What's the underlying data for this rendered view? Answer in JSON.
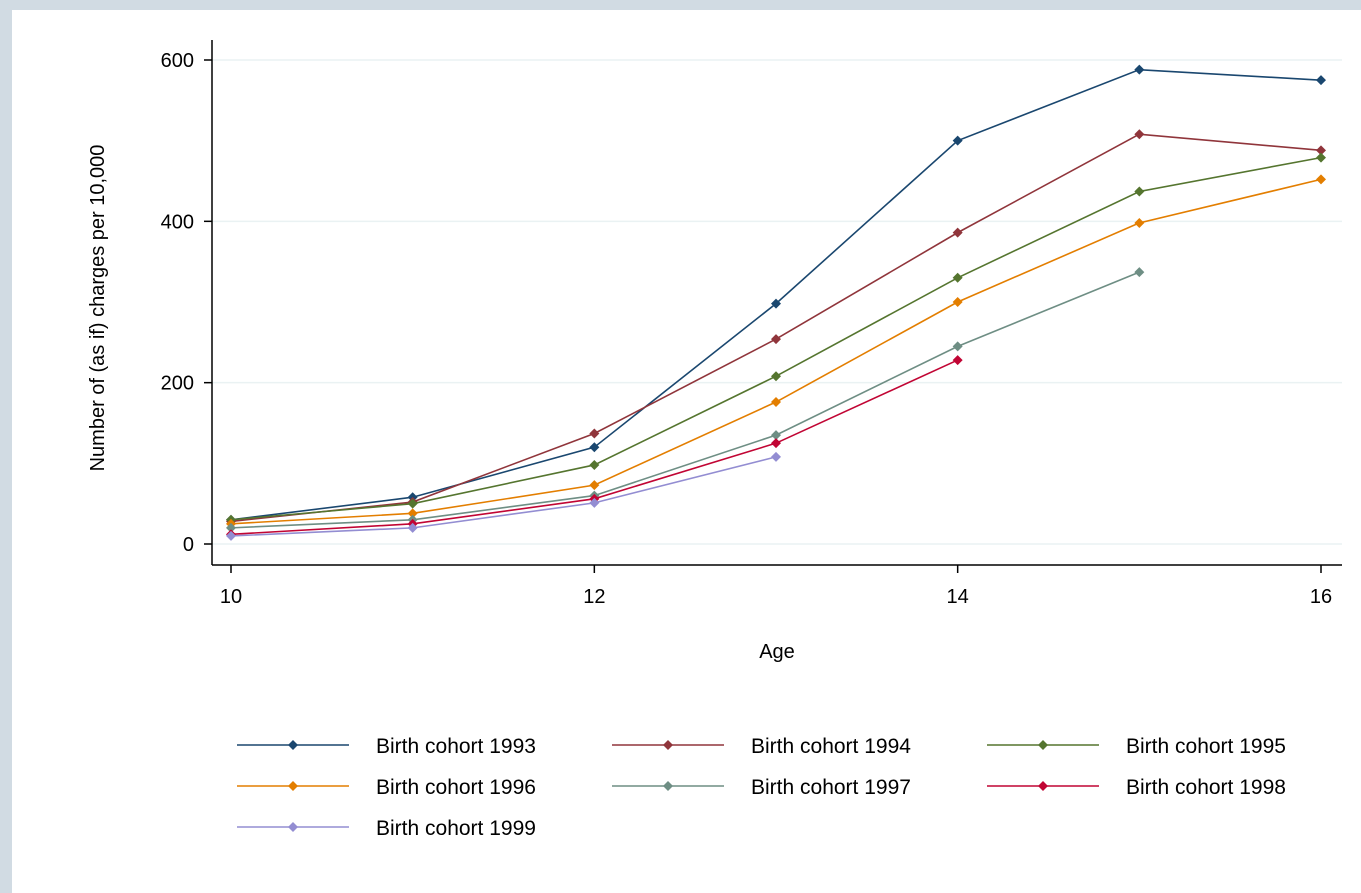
{
  "chart_data": {
    "type": "line",
    "title": "",
    "xlabel": "Age",
    "ylabel": "Number of (as if) charges per 10,000",
    "xlim": [
      10,
      16
    ],
    "ylim": [
      0,
      600
    ],
    "x_ticks": [
      "10",
      "12",
      "14",
      "16"
    ],
    "y_ticks": [
      "0",
      "200",
      "400",
      "600"
    ],
    "grid": "horizontal",
    "legend_position": "bottom",
    "series": [
      {
        "name": "Birth cohort 1993",
        "color": "#1a476f",
        "x": [
          10,
          11,
          12,
          13,
          14,
          15,
          16
        ],
        "values": [
          30,
          58,
          120,
          298,
          500,
          588,
          575
        ]
      },
      {
        "name": "Birth cohort 1994",
        "color": "#90353b",
        "x": [
          10,
          11,
          12,
          13,
          14,
          15,
          16
        ],
        "values": [
          28,
          52,
          137,
          254,
          386,
          508,
          488
        ]
      },
      {
        "name": "Birth cohort 1995",
        "color": "#55752f",
        "x": [
          10,
          11,
          12,
          13,
          14,
          15,
          16
        ],
        "values": [
          30,
          50,
          98,
          208,
          330,
          437,
          479
        ]
      },
      {
        "name": "Birth cohort 1996",
        "color": "#e37e00",
        "x": [
          10,
          11,
          12,
          13,
          14,
          15,
          16
        ],
        "values": [
          25,
          38,
          73,
          176,
          300,
          398,
          452
        ]
      },
      {
        "name": "Birth cohort 1997",
        "color": "#6e8e84",
        "x": [
          10,
          11,
          12,
          13,
          14,
          15
        ],
        "values": [
          20,
          30,
          60,
          135,
          245,
          337
        ]
      },
      {
        "name": "Birth cohort 1998",
        "color": "#c10534",
        "x": [
          10,
          11,
          12,
          13,
          14
        ],
        "values": [
          12,
          25,
          56,
          125,
          228
        ]
      },
      {
        "name": "Birth cohort 1999",
        "color": "#938dd2",
        "x": [
          10,
          11,
          12,
          13
        ],
        "values": [
          10,
          20,
          51,
          108
        ]
      }
    ]
  },
  "colors": {
    "outer_background": "#d1dbe3",
    "plot_background": "#ffffff",
    "gridline": "#eaf2f3"
  }
}
